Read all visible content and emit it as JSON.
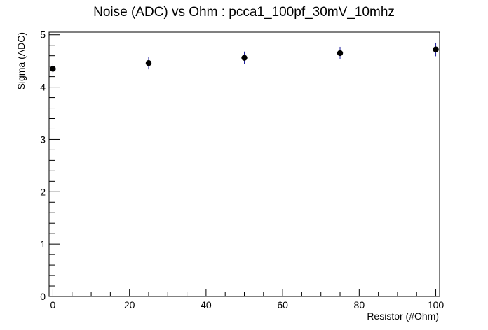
{
  "chart_data": {
    "type": "scatter",
    "title": "Noise (ADC) vs Ohm : pcca1_100pf_30mV_10mhz",
    "xlabel": "Resistor (#Ohm)",
    "ylabel": "Sigma (ADC)",
    "xlim": [
      -1,
      101
    ],
    "ylim": [
      0,
      5.05
    ],
    "x_ticks": [
      0,
      20,
      40,
      60,
      80,
      100
    ],
    "y_ticks": [
      0,
      1,
      2,
      3,
      4,
      5
    ],
    "grid": false,
    "legend": "none",
    "marker_color": "#000000",
    "errorbar_color": "#1e1e9c",
    "series": [
      {
        "x": [
          0,
          25,
          50,
          75,
          100
        ],
        "y": [
          4.35,
          4.46,
          4.56,
          4.65,
          4.72
        ],
        "yerr": [
          0.11,
          0.12,
          0.12,
          0.12,
          0.13
        ]
      }
    ]
  }
}
